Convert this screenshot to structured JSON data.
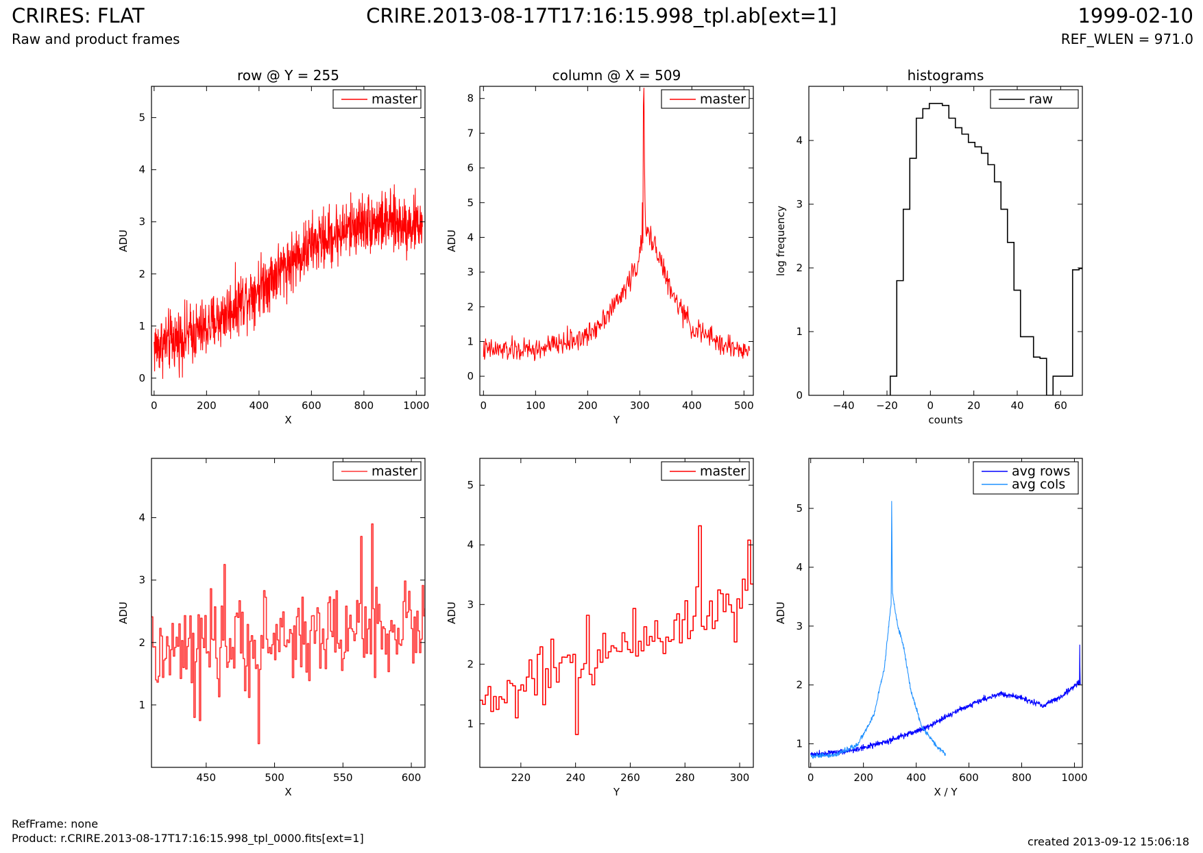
{
  "header": {
    "left_title": "CRIRES: FLAT",
    "left_subtitle": "Raw and product frames",
    "center_title": "CRIRE.2013-08-17T17:16:15.998_tpl.ab[ext=1]",
    "right_title": "1999-02-10",
    "right_subtitle": "REF_WLEN = 971.0"
  },
  "footer": {
    "ref_frame": "RefFrame: none",
    "product": "Product: r.CRIRE.2013-08-17T17:16:15.998_tpl_0000.fits[ext=1]",
    "created": "created 2013-09-12 15:06:18"
  },
  "colors": {
    "master": "#ff0000",
    "master_light": "#ff3333",
    "raw": "#000000",
    "avg_rows": "#0000ff",
    "avg_cols": "#1e90ff"
  },
  "chart_data": [
    {
      "id": "row-full",
      "type": "line",
      "title": "row @ Y = 255",
      "xlabel": "X",
      "ylabel": "ADU",
      "xlim": [
        -10,
        1033
      ],
      "ylim": [
        -0.33,
        5.6
      ],
      "xticks": [
        0,
        200,
        400,
        600,
        800,
        1000
      ],
      "yticks": [
        0,
        1,
        2,
        3,
        4,
        5
      ],
      "legend": "top-right",
      "grid": false,
      "series": [
        {
          "name": "master",
          "color": "#ff0000",
          "trend": [
            [
              0,
              0.6
            ],
            [
              200,
              0.95
            ],
            [
              400,
              1.75
            ],
            [
              600,
              2.55
            ],
            [
              800,
              3.0
            ],
            [
              1023,
              2.95
            ]
          ],
          "noise": 0.6,
          "n": 1024
        }
      ]
    },
    {
      "id": "col-full",
      "type": "line",
      "title": "column @ X = 509",
      "xlabel": "Y",
      "ylabel": "ADU",
      "xlim": [
        -7,
        518
      ],
      "ylim": [
        -0.55,
        8.35
      ],
      "xticks": [
        0,
        100,
        200,
        300,
        400,
        500
      ],
      "yticks": [
        0,
        1,
        2,
        3,
        4,
        5,
        6,
        7,
        8
      ],
      "legend": "top-right",
      "grid": false,
      "series": [
        {
          "name": "master",
          "color": "#ff0000",
          "trend": [
            [
              0,
              0.75
            ],
            [
              100,
              0.75
            ],
            [
              200,
              1.15
            ],
            [
              260,
              2.2
            ],
            [
              295,
              3.2
            ],
            [
              310,
              4.2
            ],
            [
              330,
              3.8
            ],
            [
              360,
              2.4
            ],
            [
              400,
              1.4
            ],
            [
              460,
              0.9
            ],
            [
              511,
              0.7
            ]
          ],
          "noise": 0.35,
          "n": 512,
          "spikes": [
            [
              307,
              7.8
            ],
            [
              308,
              8.3
            ],
            [
              309,
              6.2
            ],
            [
              310,
              5.1
            ],
            [
              305,
              5.0
            ]
          ]
        }
      ]
    },
    {
      "id": "histogram",
      "type": "bar",
      "title": "histograms",
      "xlabel": "counts",
      "ylabel": "log frequency",
      "xlim": [
        -56,
        70
      ],
      "ylim": [
        0,
        4.85
      ],
      "xticks": [
        -40,
        -20,
        0,
        20,
        40,
        60
      ],
      "yticks": [
        0,
        1,
        2,
        3,
        4
      ],
      "legend": "top-right",
      "grid": false,
      "series": [
        {
          "name": "raw",
          "color": "#000000",
          "bin_edges": [
            -18.5,
            -15.5,
            -12.5,
            -9.5,
            -6.5,
            -3.5,
            -0.5,
            2.5,
            5.5,
            8.5,
            11.5,
            14.5,
            17.5,
            20.5,
            23.5,
            26.5,
            29.5,
            32.5,
            35.5,
            38.5,
            41.5,
            44.5,
            47.5,
            50.5,
            53.5,
            56.5,
            59.5,
            62.5,
            65.5,
            68.5,
            70
          ],
          "values": [
            0.3,
            1.8,
            2.92,
            3.72,
            4.35,
            4.5,
            4.58,
            4.58,
            4.55,
            4.35,
            4.2,
            4.1,
            3.97,
            3.9,
            3.8,
            3.62,
            3.35,
            2.92,
            2.4,
            1.65,
            0.92,
            0.92,
            0.6,
            0.58,
            0.0,
            0.3,
            0.3,
            0.3,
            1.97,
            1.99
          ]
        }
      ]
    },
    {
      "id": "row-zoom",
      "type": "line",
      "title": "",
      "xlabel": "X",
      "ylabel": "ADU",
      "xlim": [
        410,
        610
      ],
      "ylim": [
        0.0,
        4.95
      ],
      "xticks": [
        450,
        500,
        550,
        600
      ],
      "yticks": [
        1,
        2,
        3,
        4
      ],
      "legend": "top-right",
      "grid": false,
      "series": [
        {
          "name": "master",
          "color": "#ff3333",
          "trend": [
            [
              410,
              1.75
            ],
            [
              500,
              2.05
            ],
            [
              610,
              2.3
            ]
          ],
          "noise": 0.75,
          "n": 201,
          "x0": 410,
          "step": 1,
          "spikes": [
            [
              488,
              0.38
            ],
            [
              571,
              3.9
            ],
            [
              563,
              3.7
            ],
            [
              463,
              3.25
            ],
            [
              445,
              0.75
            ],
            [
              441,
              0.8
            ]
          ]
        }
      ]
    },
    {
      "id": "col-zoom",
      "type": "line",
      "title": "",
      "xlabel": "Y",
      "ylabel": "ADU",
      "xlim": [
        205,
        305
      ],
      "ylim": [
        0.27,
        5.45
      ],
      "xticks": [
        220,
        240,
        260,
        280,
        300
      ],
      "yticks": [
        1,
        2,
        3,
        4,
        5
      ],
      "legend": "top-right",
      "grid": false,
      "series": [
        {
          "name": "master",
          "color": "#ff0000",
          "trend": [
            [
              205,
              1.3
            ],
            [
              240,
              2.0
            ],
            [
              270,
              2.55
            ],
            [
              305,
              3.2
            ]
          ],
          "noise": 0.55,
          "n": 101,
          "x0": 205,
          "step": 1,
          "spikes": [
            [
              285,
              4.32
            ],
            [
              303,
              4.08
            ],
            [
              240,
              0.82
            ],
            [
              234,
              2.02
            ],
            [
              244,
              2.82
            ]
          ]
        }
      ]
    },
    {
      "id": "averages",
      "type": "line",
      "title": "",
      "xlabel": "X / Y",
      "ylabel": "ADU",
      "xlim": [
        -7,
        1030
      ],
      "ylim": [
        0.6,
        5.85
      ],
      "xticks": [
        0,
        200,
        400,
        600,
        800,
        1000
      ],
      "yticks": [
        1,
        2,
        3,
        4,
        5
      ],
      "legend": "top-right",
      "grid": false,
      "series": [
        {
          "name": "avg rows",
          "color": "#0000ff",
          "trend": [
            [
              0,
              0.82
            ],
            [
              150,
              0.88
            ],
            [
              300,
              1.05
            ],
            [
              450,
              1.3
            ],
            [
              550,
              1.55
            ],
            [
              650,
              1.75
            ],
            [
              720,
              1.85
            ],
            [
              800,
              1.78
            ],
            [
              880,
              1.65
            ],
            [
              950,
              1.8
            ],
            [
              1020,
              2.05
            ]
          ],
          "noise": 0.05,
          "n": 1024,
          "spikes": [
            [
              1020,
              2.68
            ],
            [
              1021,
              2.3
            ]
          ]
        },
        {
          "name": "avg cols",
          "color": "#1e90ff",
          "trend": [
            [
              0,
              0.78
            ],
            [
              100,
              0.82
            ],
            [
              180,
              1.0
            ],
            [
              240,
              1.5
            ],
            [
              280,
              2.3
            ],
            [
              300,
              3.2
            ],
            [
              310,
              3.55
            ],
            [
              330,
              3.0
            ],
            [
              350,
              2.7
            ],
            [
              380,
              1.9
            ],
            [
              420,
              1.3
            ],
            [
              470,
              1.0
            ],
            [
              511,
              0.82
            ]
          ],
          "noise": 0.04,
          "n": 512,
          "spikes": [
            [
              307,
              5.12
            ],
            [
              308,
              4.6
            ],
            [
              309,
              3.9
            ],
            [
              306,
              4.1
            ]
          ]
        }
      ]
    }
  ]
}
